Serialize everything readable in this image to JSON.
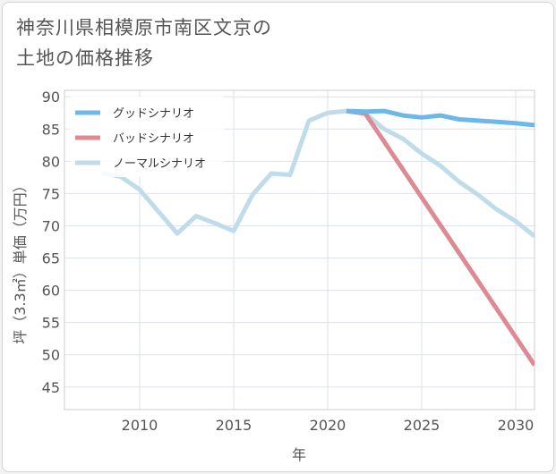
{
  "header": {
    "title_line1": "神奈川県相模原市南区文京の",
    "title_line2": "土地の価格推移"
  },
  "chart_data": {
    "type": "line",
    "xlabel": "年",
    "ylabel": "坪（3.3㎡）単価（万円）",
    "xlim": [
      2006,
      2031
    ],
    "ylim": [
      41.5,
      91
    ],
    "x_ticks": [
      2010,
      2015,
      2020,
      2025,
      2030
    ],
    "y_ticks": [
      45,
      50,
      55,
      60,
      65,
      70,
      75,
      80,
      85,
      90
    ],
    "grid": true,
    "legend_position": "top-left",
    "series": [
      {
        "name": "グッドシナリオ",
        "color": "#6cb8ea",
        "x": [
          2021,
          2022,
          2023,
          2024,
          2025,
          2026,
          2027,
          2028,
          2029,
          2030,
          2031
        ],
        "y": [
          87.8,
          87.7,
          87.8,
          87.1,
          86.8,
          87.1,
          86.5,
          86.3,
          86.1,
          85.9,
          85.6
        ]
      },
      {
        "name": "バッドシナリオ",
        "color": "#dd8a93",
        "x": [
          2021,
          2022,
          2031
        ],
        "y": [
          87.8,
          87.4,
          48.4
        ]
      },
      {
        "name": "ノーマルシナリオ",
        "color": "#c0dcea",
        "x": [
          2008,
          2009,
          2010,
          2011,
          2012,
          2013,
          2014,
          2015,
          2016,
          2017,
          2018,
          2019,
          2020,
          2021,
          2022,
          2023,
          2024,
          2025,
          2026,
          2027,
          2028,
          2029,
          2030,
          2031
        ],
        "y": [
          78.2,
          77.6,
          75.6,
          72.2,
          68.8,
          71.5,
          70.4,
          69.2,
          74.8,
          78.1,
          77.9,
          86.3,
          87.5,
          87.8,
          87.4,
          85.0,
          83.5,
          81.2,
          79.3,
          76.8,
          74.8,
          72.5,
          70.7,
          68.4
        ]
      }
    ]
  }
}
